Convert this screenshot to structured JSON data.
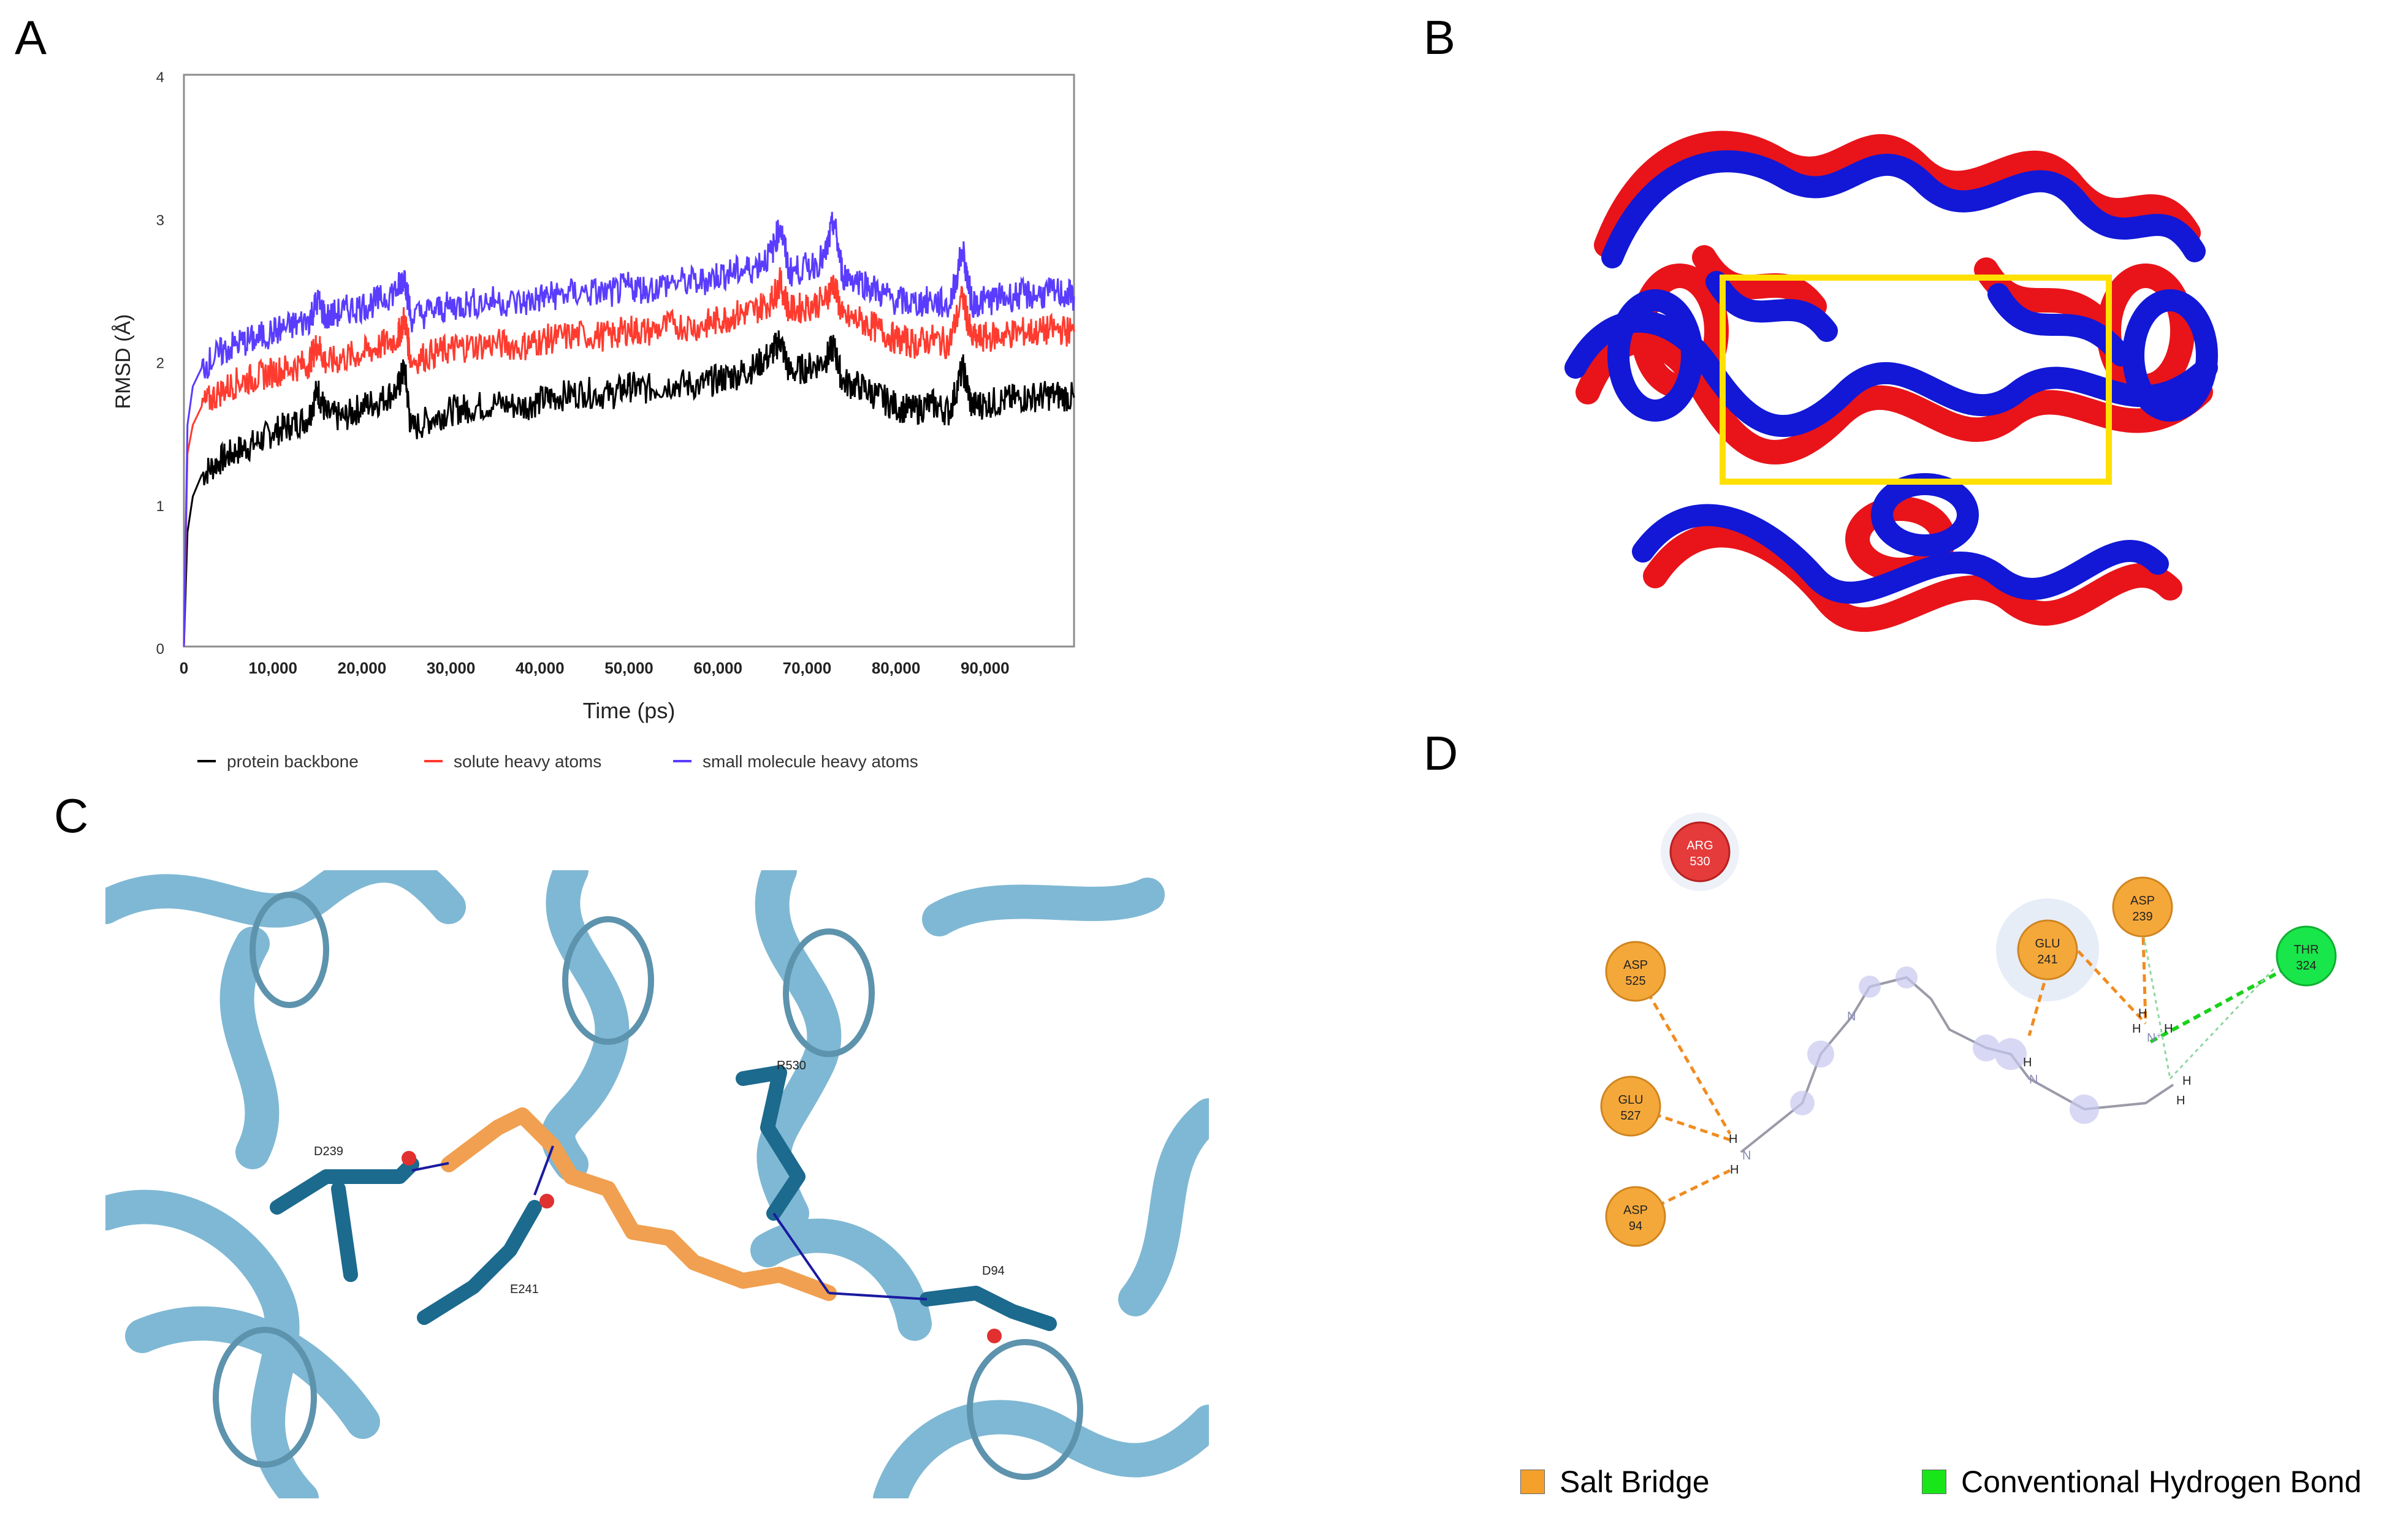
{
  "panels": {
    "a": "A",
    "b": "B",
    "c": "C",
    "d": "D"
  },
  "chart_data": {
    "type": "line",
    "xlabel": "Time (ps)",
    "ylabel": "RMSD (Å)",
    "xlim": [
      0,
      100000
    ],
    "ylim": [
      0,
      4
    ],
    "x_ticks": [
      "10,000",
      "20,000",
      "30,000",
      "40,000",
      "50,000",
      "60,000",
      "70,000",
      "80,000",
      "90,000"
    ],
    "y_ticks": [
      "0",
      "1",
      "2",
      "3",
      "4"
    ],
    "x_zero_label": "0",
    "legend_position": "bottom",
    "grid": false,
    "series": [
      {
        "name": "protein backbone",
        "color": "#000000",
        "x": [
          0,
          400,
          1000,
          2000,
          4000,
          6000,
          8000,
          10000,
          12000,
          14000,
          15000,
          16000,
          18000,
          20000,
          22000,
          24000,
          24800,
          25500,
          28000,
          30000,
          32000,
          35000,
          38000,
          40000,
          42000,
          45000,
          48000,
          50000,
          52000,
          55000,
          58000,
          60000,
          62000,
          64000,
          66000,
          67000,
          68000,
          70000,
          72000,
          73000,
          74000,
          76000,
          78000,
          80000,
          82000,
          84000,
          86000,
          87500,
          88500,
          90000,
          92000,
          94000,
          96000,
          98000,
          100000
        ],
        "y": [
          0.0,
          0.8,
          1.05,
          1.2,
          1.3,
          1.37,
          1.42,
          1.5,
          1.55,
          1.6,
          1.8,
          1.62,
          1.6,
          1.68,
          1.72,
          1.8,
          1.95,
          1.52,
          1.6,
          1.65,
          1.67,
          1.7,
          1.68,
          1.72,
          1.75,
          1.78,
          1.76,
          1.82,
          1.8,
          1.84,
          1.83,
          1.87,
          1.9,
          1.95,
          2.05,
          2.15,
          1.92,
          1.95,
          2.0,
          2.1,
          1.85,
          1.82,
          1.75,
          1.68,
          1.65,
          1.7,
          1.64,
          1.95,
          1.68,
          1.7,
          1.72,
          1.74,
          1.75,
          1.76,
          1.74
        ]
      },
      {
        "name": "solute heavy atoms",
        "color": "#ff3b2f",
        "x": [
          0,
          400,
          1000,
          2000,
          4000,
          6000,
          8000,
          10000,
          12000,
          14000,
          15000,
          16000,
          18000,
          20000,
          22000,
          24000,
          24800,
          25500,
          28000,
          30000,
          32000,
          35000,
          38000,
          40000,
          42000,
          45000,
          48000,
          50000,
          52000,
          55000,
          58000,
          60000,
          62000,
          64000,
          66000,
          67000,
          68000,
          70000,
          72000,
          73000,
          74000,
          76000,
          78000,
          80000,
          82000,
          84000,
          86000,
          87500,
          88500,
          90000,
          92000,
          94000,
          96000,
          98000,
          100000
        ],
        "y": [
          0.0,
          1.35,
          1.55,
          1.68,
          1.78,
          1.85,
          1.88,
          1.92,
          1.95,
          1.98,
          2.12,
          1.98,
          2.02,
          2.05,
          2.1,
          2.16,
          2.3,
          2.0,
          2.05,
          2.08,
          2.1,
          2.12,
          2.1,
          2.14,
          2.16,
          2.18,
          2.17,
          2.22,
          2.2,
          2.25,
          2.24,
          2.28,
          2.32,
          2.35,
          2.42,
          2.55,
          2.35,
          2.38,
          2.42,
          2.55,
          2.3,
          2.28,
          2.22,
          2.15,
          2.12,
          2.15,
          2.12,
          2.45,
          2.15,
          2.16,
          2.18,
          2.2,
          2.2,
          2.22,
          2.2
        ]
      },
      {
        "name": "small molecule heavy atoms",
        "color": "#5a3cff",
        "x": [
          0,
          400,
          1000,
          2000,
          4000,
          6000,
          8000,
          10000,
          12000,
          14000,
          15000,
          16000,
          18000,
          20000,
          22000,
          24000,
          24800,
          25500,
          28000,
          30000,
          32000,
          35000,
          38000,
          40000,
          42000,
          45000,
          48000,
          50000,
          52000,
          55000,
          58000,
          60000,
          62000,
          64000,
          66000,
          67000,
          68000,
          70000,
          72000,
          73000,
          74000,
          76000,
          78000,
          80000,
          82000,
          84000,
          86000,
          87500,
          88500,
          90000,
          92000,
          94000,
          96000,
          98000,
          100000
        ],
        "y": [
          0.0,
          1.55,
          1.82,
          1.95,
          2.05,
          2.12,
          2.15,
          2.2,
          2.24,
          2.28,
          2.42,
          2.3,
          2.35,
          2.38,
          2.42,
          2.5,
          2.6,
          2.3,
          2.35,
          2.38,
          2.4,
          2.42,
          2.4,
          2.44,
          2.46,
          2.48,
          2.47,
          2.52,
          2.5,
          2.55,
          2.55,
          2.6,
          2.62,
          2.65,
          2.75,
          2.95,
          2.62,
          2.65,
          2.72,
          2.98,
          2.6,
          2.56,
          2.48,
          2.42,
          2.4,
          2.42,
          2.38,
          2.78,
          2.4,
          2.42,
          2.44,
          2.46,
          2.46,
          2.48,
          2.45
        ]
      }
    ]
  },
  "panel_b": {
    "description_colors": {
      "red": "#e8141a",
      "blue": "#1218d6",
      "box": "#ffe000"
    }
  },
  "panel_c": {
    "labels": {
      "r530": "R530",
      "d239": "D239",
      "e241": "E241",
      "d94": "D94"
    },
    "colors": {
      "ribbon": "#7fb8d4",
      "residue": "#1c6a8e",
      "ligand": "#f0a050",
      "bond": "#1a1aa0"
    }
  },
  "panel_d": {
    "residues": [
      {
        "name": "ARG",
        "num": "530",
        "type": "red"
      },
      {
        "name": "ASP",
        "num": "525",
        "type": "orange"
      },
      {
        "name": "GLU",
        "num": "527",
        "type": "orange"
      },
      {
        "name": "ASP",
        "num": "94",
        "type": "orange"
      },
      {
        "name": "GLU",
        "num": "241",
        "type": "orange"
      },
      {
        "name": "ASP",
        "num": "239",
        "type": "orange"
      },
      {
        "name": "THR",
        "num": "324",
        "type": "green"
      }
    ],
    "atoms": {
      "h": "H",
      "n": "N",
      "n_plus": "N⁺"
    },
    "legend": [
      {
        "label": "Salt Bridge",
        "color": "#f5a02a"
      },
      {
        "label": "Conventional Hydrogen Bond",
        "color": "#19e619"
      }
    ]
  }
}
